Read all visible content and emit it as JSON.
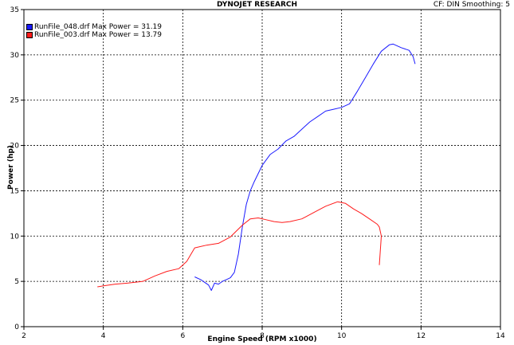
{
  "header": {
    "title": "DYNOJET RESEARCH",
    "info": "CF: DIN  Smoothing: 5"
  },
  "chart_data": {
    "type": "line",
    "title": "DYNOJET RESEARCH",
    "xlabel": "Engine Speed (RPM x1000)",
    "ylabel": "Power (hp)",
    "xlim": [
      2,
      14
    ],
    "ylim": [
      0,
      35
    ],
    "xticks": [
      2,
      4,
      6,
      8,
      10,
      12,
      14
    ],
    "yticks": [
      0,
      5,
      10,
      15,
      20,
      25,
      30,
      35
    ],
    "grid": true,
    "legend_position": "top-left",
    "series": [
      {
        "name": "RunFile_048.drf Max Power = 31.19",
        "color": "#1a1aff",
        "x": [
          6.3,
          6.45,
          6.55,
          6.65,
          6.72,
          6.8,
          6.9,
          7.0,
          7.1,
          7.2,
          7.3,
          7.4,
          7.5,
          7.6,
          7.7,
          7.8,
          8.0,
          8.2,
          8.4,
          8.6,
          8.8,
          9.0,
          9.2,
          9.4,
          9.6,
          9.8,
          10.0,
          10.2,
          10.4,
          10.6,
          10.8,
          11.0,
          11.2,
          11.3,
          11.5,
          11.7,
          11.8,
          11.85
        ],
        "y": [
          5.5,
          5.2,
          4.9,
          4.6,
          4.0,
          4.8,
          4.7,
          5.0,
          5.2,
          5.4,
          6.0,
          8.0,
          11.0,
          13.5,
          15.0,
          16.0,
          17.8,
          19.0,
          19.6,
          20.5,
          21.0,
          21.8,
          22.6,
          23.2,
          23.8,
          24.0,
          24.2,
          24.6,
          26.0,
          27.5,
          29.0,
          30.4,
          31.1,
          31.19,
          30.8,
          30.5,
          29.8,
          29.0
        ]
      },
      {
        "name": "RunFile_003.drf Max Power = 13.79",
        "color": "#ff1a1a",
        "x": [
          3.85,
          4.0,
          4.3,
          4.6,
          5.0,
          5.3,
          5.6,
          5.9,
          6.1,
          6.3,
          6.6,
          6.9,
          7.2,
          7.5,
          7.7,
          7.9,
          8.1,
          8.3,
          8.5,
          8.7,
          9.0,
          9.3,
          9.6,
          9.9,
          10.1,
          10.3,
          10.5,
          10.7,
          10.9,
          10.95,
          11.0,
          10.95
        ],
        "y": [
          4.4,
          4.5,
          4.7,
          4.8,
          5.0,
          5.6,
          6.1,
          6.4,
          7.2,
          8.7,
          9.0,
          9.2,
          9.9,
          11.2,
          11.9,
          12.0,
          11.8,
          11.6,
          11.5,
          11.6,
          11.9,
          12.6,
          13.3,
          13.79,
          13.6,
          13.0,
          12.5,
          11.9,
          11.3,
          11.0,
          10.0,
          6.8
        ]
      }
    ]
  }
}
